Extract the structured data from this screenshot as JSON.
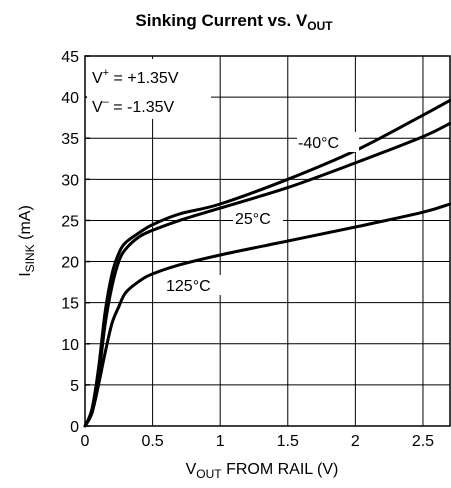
{
  "chart_data": {
    "type": "line",
    "title": {
      "main": "Sinking Current vs. V",
      "sub": "OUT"
    },
    "xlabel": {
      "pre": "V",
      "sub": "OUT",
      "post": " FROM RAIL (V)"
    },
    "ylabel": {
      "pre": "I",
      "sub": "SINK",
      "post": " (mA)"
    },
    "xlim": [
      0,
      2.7
    ],
    "ylim": [
      0,
      45
    ],
    "xticks": [
      0,
      0.5,
      1,
      1.5,
      2,
      2.5
    ],
    "xtick_labels": [
      "0",
      "0.5",
      "1",
      "1.5",
      "2",
      "2.5"
    ],
    "yticks": [
      0,
      5,
      10,
      15,
      20,
      25,
      30,
      35,
      40,
      45
    ],
    "ytick_labels": [
      "0",
      "5",
      "10",
      "15",
      "20",
      "25",
      "30",
      "35",
      "40",
      "45"
    ],
    "grid": true,
    "legend": "none",
    "annotations": {
      "vplus": {
        "pre": "V",
        "sup": "+",
        "post": " = +1.35V"
      },
      "vminus": {
        "pre": "V",
        "sup": "–",
        "post": " = -1.35V"
      }
    },
    "series": [
      {
        "name": "-40°C",
        "x": [
          0,
          0.05,
          0.1,
          0.15,
          0.2,
          0.25,
          0.3,
          0.4,
          0.5,
          0.7,
          1.0,
          1.5,
          2.0,
          2.5,
          2.7
        ],
        "y": [
          0,
          2,
          7,
          14,
          18.5,
          21,
          22.3,
          23.5,
          24.5,
          25.8,
          27,
          30,
          33.5,
          37.8,
          39.6
        ]
      },
      {
        "name": "25°C",
        "x": [
          0,
          0.05,
          0.1,
          0.15,
          0.2,
          0.25,
          0.3,
          0.4,
          0.5,
          0.7,
          1.0,
          1.5,
          2.0,
          2.5,
          2.7
        ],
        "y": [
          0,
          1.8,
          6,
          12.5,
          17,
          20,
          21.5,
          23,
          23.8,
          25,
          26.5,
          29,
          32,
          35.2,
          36.8
        ]
      },
      {
        "name": "125°C",
        "x": [
          0,
          0.05,
          0.1,
          0.15,
          0.2,
          0.25,
          0.3,
          0.4,
          0.5,
          0.7,
          1.0,
          1.5,
          2.0,
          2.5,
          2.7
        ],
        "y": [
          0,
          1.5,
          5,
          9,
          12.5,
          14.5,
          16.2,
          17.6,
          18.5,
          19.6,
          20.8,
          22.5,
          24.2,
          26,
          27
        ]
      }
    ],
    "series_label_text": [
      "-40°C",
      "25°C",
      "125°C"
    ]
  }
}
